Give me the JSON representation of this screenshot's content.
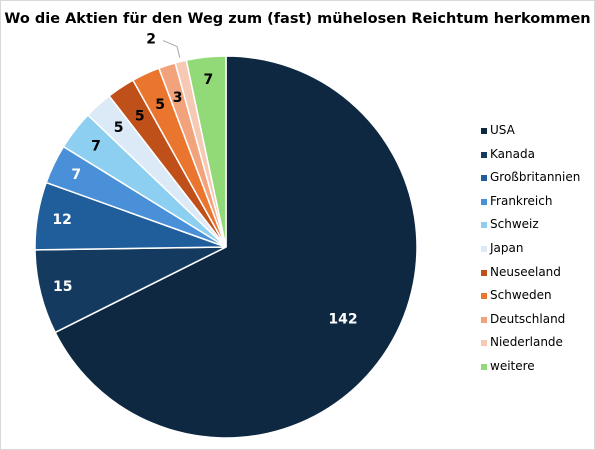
{
  "chart_data": {
    "type": "pie",
    "title": "Wo die Aktien für den Weg zum (fast) mühelosen Reichtum herkommen",
    "categories": [
      "USA",
      "Kanada",
      "Großbritannien",
      "Frankreich",
      "Schweiz",
      "Japan",
      "Neuseeland",
      "Schweden",
      "Deutschland",
      "Niederlande",
      "weitere"
    ],
    "values": [
      142,
      15,
      12,
      7,
      7,
      5,
      5,
      5,
      3,
      2,
      7
    ],
    "data_labels": [
      "142",
      "15",
      "12",
      "7",
      "7",
      "5",
      "5",
      "5",
      "3",
      "2",
      "7"
    ],
    "colors": [
      "#0e2841",
      "#153a5f",
      "#1f5e9b",
      "#4a90d9",
      "#8ccff0",
      "#dce9f7",
      "#c0501a",
      "#e9752f",
      "#f3a37c",
      "#f6c9b4",
      "#92d977"
    ],
    "label_colors": [
      "#ffffff",
      "#ffffff",
      "#ffffff",
      "#ffffff",
      "#000000",
      "#000000",
      "#000000",
      "#000000",
      "#000000",
      "#000000",
      "#000000"
    ],
    "legend_position": "right",
    "start_angle": "12 o'clock",
    "direction": "clockwise"
  }
}
